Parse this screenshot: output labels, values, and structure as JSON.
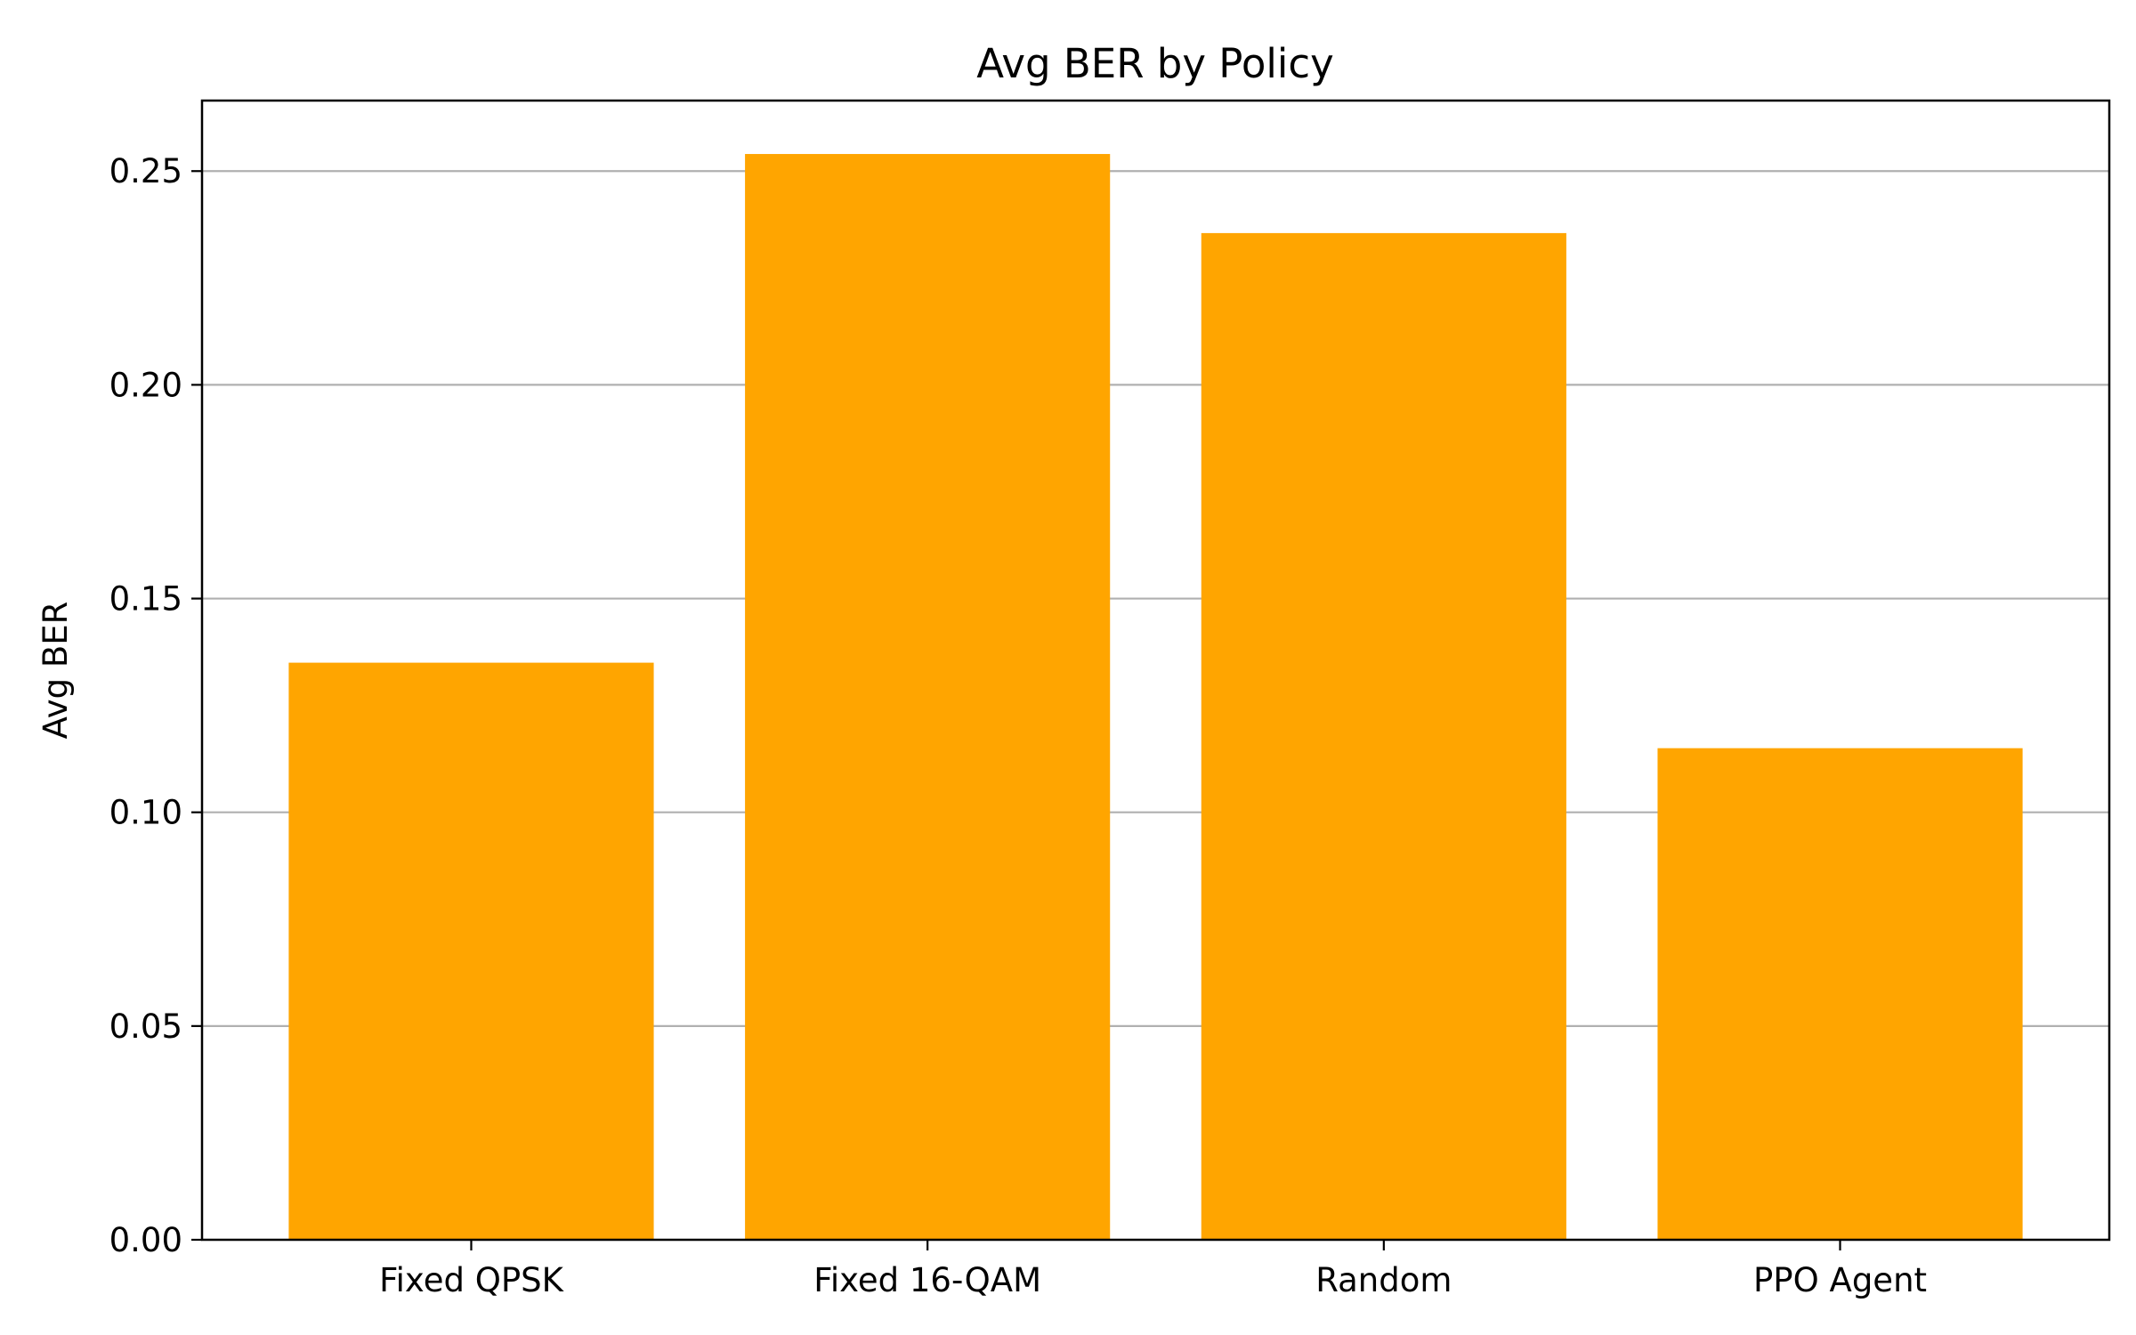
{
  "chart_data": {
    "type": "bar",
    "title": "Avg BER by Policy",
    "xlabel": "",
    "ylabel": "Avg BER",
    "categories": [
      "Fixed QPSK",
      "Fixed 16-QAM",
      "Random",
      "PPO Agent"
    ],
    "values": [
      0.135,
      0.254,
      0.2355,
      0.115
    ],
    "ylim": [
      0,
      0.2665
    ],
    "yticks": [
      0.0,
      0.05,
      0.1,
      0.15,
      0.2,
      0.25
    ],
    "ytick_labels": [
      "0.00",
      "0.05",
      "0.10",
      "0.15",
      "0.20",
      "0.25"
    ],
    "grid": "horizontal",
    "legend": "none",
    "colors": {
      "bar": "#FFA500",
      "grid": "#b0b0b0",
      "axis": "#000000"
    }
  }
}
